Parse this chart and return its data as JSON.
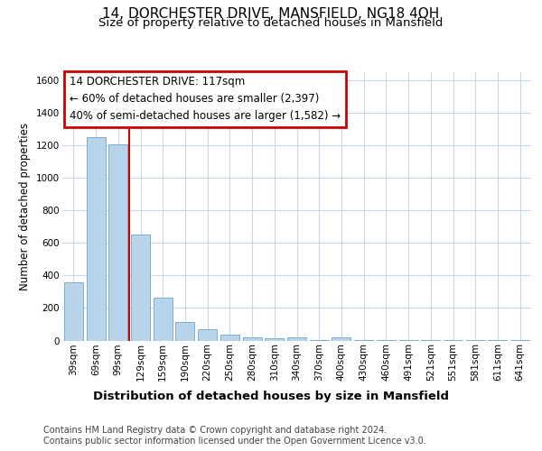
{
  "title": "14, DORCHESTER DRIVE, MANSFIELD, NG18 4QH",
  "subtitle": "Size of property relative to detached houses in Mansfield",
  "xlabel": "Distribution of detached houses by size in Mansfield",
  "ylabel": "Number of detached properties",
  "footer_line1": "Contains HM Land Registry data © Crown copyright and database right 2024.",
  "footer_line2": "Contains public sector information licensed under the Open Government Licence v3.0.",
  "categories": [
    "39sqm",
    "69sqm",
    "99sqm",
    "129sqm",
    "159sqm",
    "190sqm",
    "220sqm",
    "250sqm",
    "280sqm",
    "310sqm",
    "340sqm",
    "370sqm",
    "400sqm",
    "430sqm",
    "460sqm",
    "491sqm",
    "521sqm",
    "551sqm",
    "581sqm",
    "611sqm",
    "641sqm"
  ],
  "values": [
    360,
    1250,
    1205,
    650,
    265,
    115,
    70,
    38,
    22,
    15,
    20,
    5,
    18,
    3,
    3,
    2,
    2,
    2,
    2,
    2,
    2
  ],
  "bar_color": "#b8d4ea",
  "bar_edge_color": "#7aafd4",
  "vline_x": 2.5,
  "vline_color": "#cc0000",
  "annotation_line1": "14 DORCHESTER DRIVE: 117sqm",
  "annotation_line2": "← 60% of detached houses are smaller (2,397)",
  "annotation_line3": "40% of semi-detached houses are larger (1,582) →",
  "annotation_box_color": "#cc0000",
  "ylim": [
    0,
    1650
  ],
  "yticks": [
    0,
    200,
    400,
    600,
    800,
    1000,
    1200,
    1400,
    1600
  ],
  "background_color": "#ffffff",
  "grid_color": "#c8d8e8",
  "title_fontsize": 11,
  "subtitle_fontsize": 9.5,
  "xlabel_fontsize": 9.5,
  "ylabel_fontsize": 8.5,
  "tick_fontsize": 7.5,
  "footer_fontsize": 7,
  "annot_fontsize": 8.5
}
